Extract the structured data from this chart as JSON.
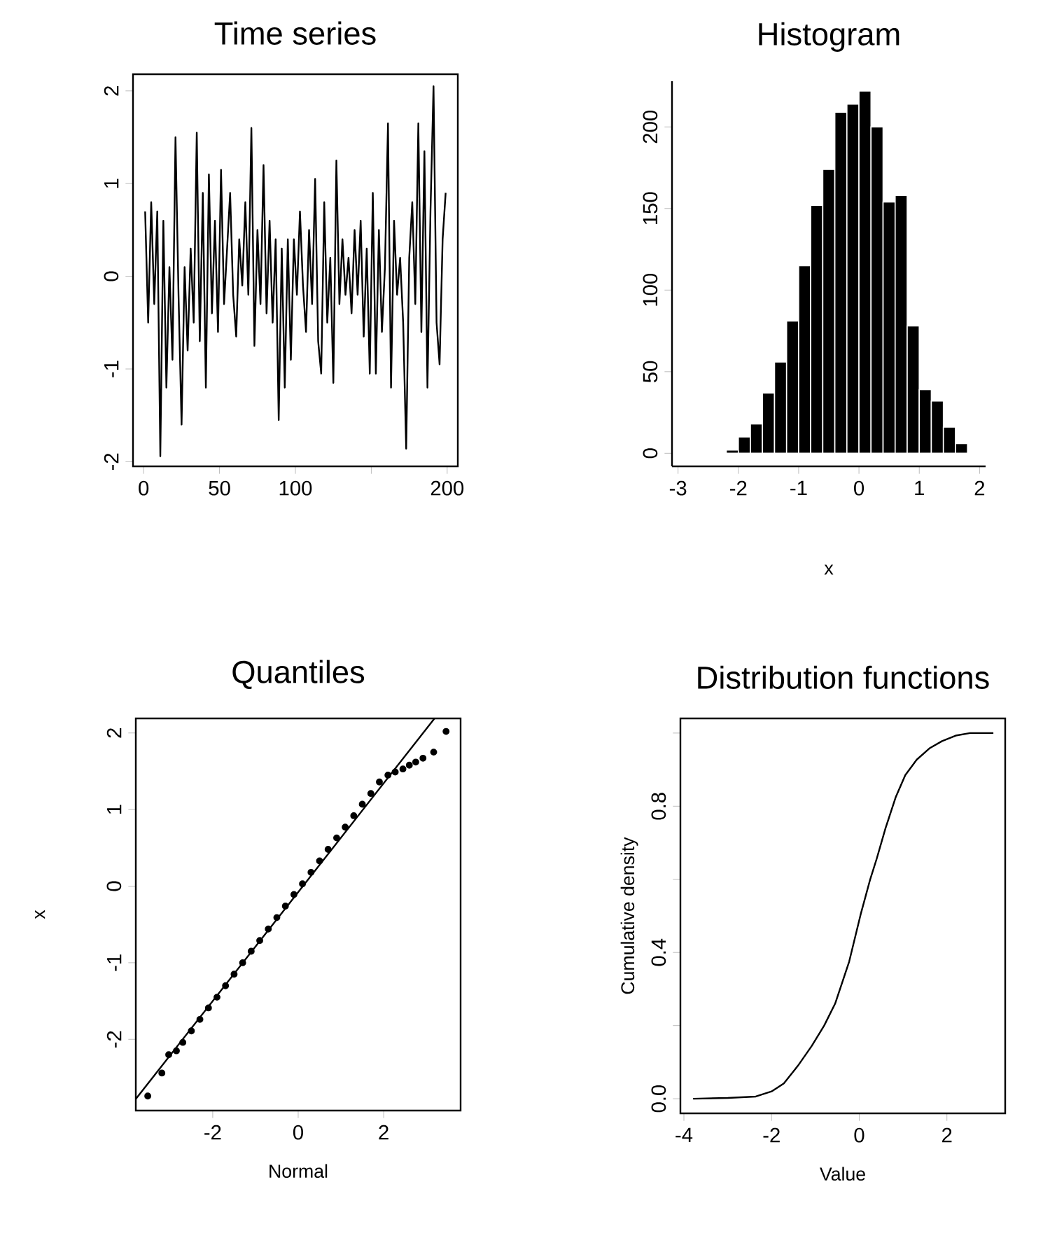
{
  "chart_data": [
    {
      "type": "line",
      "title": "Time series",
      "color": "#000000",
      "xlim": [
        -7,
        207
      ],
      "ylim": [
        -2.05,
        2.18
      ],
      "xticks": [
        0,
        50,
        100,
        {
          "value": 150,
          "label": null
        },
        200
      ],
      "yticks": [
        -2,
        -1,
        0,
        1,
        2
      ],
      "x": [
        1,
        3,
        5,
        7,
        9,
        11,
        13,
        15,
        17,
        19,
        21,
        23,
        25,
        27,
        29,
        31,
        33,
        35,
        37,
        39,
        41,
        43,
        45,
        47,
        49,
        51,
        53,
        55,
        57,
        59,
        61,
        63,
        65,
        67,
        69,
        71,
        73,
        75,
        77,
        79,
        81,
        83,
        85,
        87,
        89,
        91,
        93,
        95,
        97,
        99,
        101,
        103,
        105,
        107,
        109,
        111,
        113,
        115,
        117,
        119,
        121,
        123,
        125,
        127,
        129,
        131,
        133,
        135,
        137,
        139,
        141,
        143,
        145,
        147,
        149,
        151,
        153,
        155,
        157,
        159,
        161,
        163,
        165,
        167,
        169,
        171,
        173,
        175,
        177,
        179,
        181,
        183,
        185,
        187,
        189,
        191,
        193,
        195,
        197,
        199
      ],
      "values": [
        0.7,
        -0.5,
        0.8,
        -0.3,
        0.7,
        -1.94,
        0.6,
        -1.2,
        0.1,
        -0.9,
        1.5,
        -0.2,
        -1.6,
        0.1,
        -0.8,
        0.3,
        -0.5,
        1.55,
        -0.7,
        0.9,
        -1.2,
        1.1,
        -0.4,
        0.6,
        -0.6,
        1.15,
        -0.3,
        0.3,
        0.9,
        -0.2,
        -0.65,
        0.4,
        -0.1,
        0.8,
        -0.2,
        1.6,
        -0.75,
        0.5,
        -0.3,
        1.2,
        -0.4,
        0.6,
        -0.5,
        0.4,
        -1.55,
        0.3,
        -1.2,
        0.4,
        -0.9,
        0.4,
        -0.2,
        0.7,
        -0.1,
        -0.6,
        0.5,
        -0.3,
        1.05,
        -0.7,
        -1.05,
        0.8,
        -0.5,
        0.2,
        -1.15,
        1.25,
        -0.3,
        0.4,
        -0.2,
        0.2,
        -0.4,
        0.5,
        -0.2,
        0.6,
        -0.65,
        0.3,
        -1.05,
        0.9,
        -1.05,
        0.5,
        -0.6,
        0.1,
        1.65,
        -1.2,
        0.6,
        -0.2,
        0.2,
        -0.5,
        -1.86,
        0.2,
        0.8,
        -0.3,
        1.65,
        -0.6,
        1.35,
        -1.2,
        0.7,
        2.05,
        -0.5,
        -0.95,
        0.4,
        0.9
      ]
    },
    {
      "type": "histogram",
      "title": "Histogram",
      "xlabel": "x",
      "color": "#000000",
      "xlim": [
        -3.1,
        2.1
      ],
      "ylim": [
        -8,
        228
      ],
      "xticks": [
        -3,
        -2,
        -1,
        0,
        1,
        2
      ],
      "yticks": [
        0,
        50,
        100,
        150,
        200
      ],
      "bins": [
        -2.2,
        -2.0,
        -1.8,
        -1.6,
        -1.4,
        -1.2,
        -1.0,
        -0.8,
        -0.6,
        -0.4,
        -0.2,
        0.0,
        0.2,
        0.4,
        0.6,
        0.8,
        1.0,
        1.2,
        1.4,
        1.6,
        1.8
      ],
      "values": [
        2,
        10,
        18,
        37,
        56,
        81,
        115,
        152,
        174,
        209,
        214,
        222,
        200,
        154,
        158,
        78,
        39,
        32,
        16,
        6
      ]
    },
    {
      "type": "scatter",
      "title": "Quantiles",
      "xlabel": "Normal",
      "ylabel": "x",
      "xlim": [
        -3.8,
        3.8
      ],
      "ylim": [
        -2.93,
        2.19
      ],
      "xticks": [
        -2,
        0,
        2
      ],
      "yticks": [
        -2,
        -1,
        0,
        1,
        2
      ],
      "series": [
        {
          "type": "scatter",
          "color": "#000000",
          "marker": "circle",
          "x": [
            -3.52,
            -3.19,
            -3.03,
            -2.85,
            -2.7,
            -2.5,
            -2.3,
            -2.1,
            -1.9,
            -1.7,
            -1.5,
            -1.3,
            -1.1,
            -0.9,
            -0.7,
            -0.5,
            -0.3,
            -0.1,
            0.1,
            0.3,
            0.5,
            0.7,
            0.9,
            1.1,
            1.3,
            1.5,
            1.7,
            1.9,
            2.1,
            2.27,
            2.45,
            2.6,
            2.75,
            2.92,
            3.17,
            3.46
          ],
          "values": [
            -2.74,
            -2.44,
            -2.2,
            -2.15,
            -2.04,
            -1.89,
            -1.74,
            -1.59,
            -1.45,
            -1.3,
            -1.15,
            -1.0,
            -0.85,
            -0.71,
            -0.56,
            -0.41,
            -0.26,
            -0.11,
            0.03,
            0.18,
            0.33,
            0.48,
            0.63,
            0.77,
            0.92,
            1.07,
            1.21,
            1.36,
            1.45,
            1.49,
            1.53,
            1.58,
            1.62,
            1.67,
            1.75,
            2.02
          ]
        },
        {
          "type": "line",
          "color": "#000000",
          "x": [
            -3.8,
            3.19
          ],
          "values": [
            -2.78,
            2.19
          ]
        }
      ]
    },
    {
      "type": "line",
      "title": "Distribution functions",
      "xlabel": "Value",
      "ylabel": "Cumulative density",
      "color": "#000000",
      "xlim": [
        -4.08,
        3.33
      ],
      "ylim": [
        -0.04,
        1.04
      ],
      "xticks": [
        -4,
        -2,
        0,
        2
      ],
      "yticks": [
        {
          "value": 0,
          "label": "0.0"
        },
        {
          "value": 0.2,
          "label": null
        },
        0.4,
        {
          "value": 0.6,
          "label": null
        },
        0.8,
        {
          "value": 1.0,
          "label": null
        }
      ],
      "x": [
        -3.79,
        -3,
        -2.36,
        -2,
        -1.72,
        -1.4,
        -1.08,
        -0.8,
        -0.55,
        -0.23,
        0.03,
        0.25,
        0.4,
        0.6,
        0.83,
        1.05,
        1.31,
        1.6,
        1.89,
        2.2,
        2.53,
        3.06
      ],
      "values": [
        0,
        0.002,
        0.006,
        0.02,
        0.042,
        0.09,
        0.145,
        0.2,
        0.26,
        0.375,
        0.503,
        0.6,
        0.657,
        0.74,
        0.824,
        0.885,
        0.927,
        0.958,
        0.978,
        0.993,
        1.0,
        1.0
      ]
    }
  ]
}
